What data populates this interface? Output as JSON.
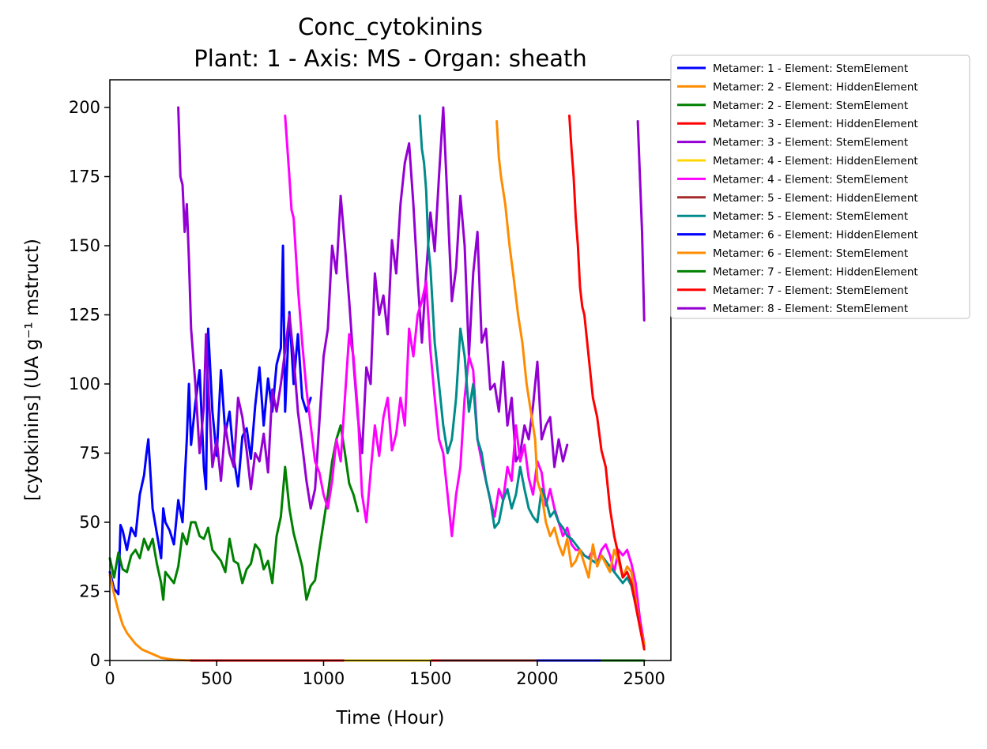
{
  "chart_data": {
    "type": "line",
    "title": "Conc_cytokinins",
    "subtitle": "Plant: 1 - Axis: MS - Organ: sheath",
    "xlabel": "Time (Hour)",
    "ylabel": "[cytokinins] (UA g⁻¹ mstruct)",
    "xlim": [
      0,
      2625
    ],
    "ylim": [
      0,
      210
    ],
    "xticks": [
      0,
      500,
      1000,
      1500,
      2000,
      2500
    ],
    "yticks": [
      0,
      25,
      50,
      75,
      100,
      125,
      150,
      175,
      200
    ],
    "grid": false,
    "legend_position": "outside-top-right",
    "series": [
      {
        "name": "Metamer: 1 - Element: StemElement",
        "color": "#0000ff",
        "x": [
          0,
          20,
          40,
          50,
          60,
          80,
          100,
          120,
          140,
          160,
          170,
          180,
          200,
          220,
          240,
          250,
          260,
          280,
          300,
          320,
          340,
          360,
          370,
          380,
          400,
          420,
          440,
          450,
          460,
          480,
          500,
          520,
          540,
          560,
          580,
          600,
          620,
          640,
          660,
          680,
          700,
          720,
          740,
          760,
          780,
          800,
          810,
          820,
          840,
          860,
          880,
          900,
          920,
          940
        ],
        "y": [
          32,
          26,
          24,
          49,
          47,
          40,
          48,
          45,
          60,
          67,
          74,
          80,
          55,
          46,
          37,
          55,
          50,
          47,
          42,
          58,
          50,
          80,
          100,
          78,
          93,
          105,
          70,
          62,
          120,
          90,
          74,
          105,
          82,
          90,
          73,
          63,
          81,
          84,
          73,
          92,
          106,
          85,
          102,
          90,
          107,
          113,
          150,
          90,
          126,
          100,
          118,
          95,
          90,
          95
        ]
      },
      {
        "name": "Metamer: 2 - Element: HiddenElement",
        "color": "#ff8c00",
        "x": [
          0,
          20,
          40,
          60,
          80,
          100,
          120,
          150,
          180,
          210,
          240,
          270,
          300,
          350,
          400,
          500,
          900
        ],
        "y": [
          31,
          24,
          18,
          13,
          10,
          8,
          6,
          4,
          3,
          2,
          1,
          0.6,
          0.3,
          0.1,
          0,
          0,
          0
        ]
      },
      {
        "name": "Metamer: 2 - Element: StemElement",
        "color": "#008000",
        "x": [
          0,
          20,
          40,
          60,
          80,
          100,
          120,
          140,
          160,
          180,
          200,
          220,
          240,
          250,
          260,
          280,
          300,
          320,
          340,
          360,
          380,
          400,
          420,
          440,
          460,
          480,
          500,
          520,
          540,
          560,
          580,
          600,
          620,
          640,
          660,
          680,
          700,
          720,
          740,
          760,
          780,
          800,
          820,
          840,
          860,
          880,
          900,
          920,
          940,
          960,
          980,
          1000,
          1020,
          1040,
          1060,
          1080,
          1100,
          1120,
          1140,
          1160
        ],
        "y": [
          37,
          30,
          39,
          33,
          32,
          38,
          40,
          37,
          44,
          40,
          44,
          35,
          28,
          22,
          32,
          30,
          28,
          34,
          46,
          42,
          50,
          50,
          45,
          44,
          48,
          40,
          38,
          36,
          32,
          44,
          36,
          35,
          28,
          33,
          35,
          42,
          40,
          33,
          36,
          28,
          45,
          52,
          70,
          55,
          46,
          40,
          34,
          22,
          27,
          29,
          40,
          50,
          60,
          72,
          80,
          85,
          75,
          64,
          60,
          54
        ]
      },
      {
        "name": "Metamer: 3 - Element: HiddenElement",
        "color": "#ff0000",
        "x": [
          380,
          600,
          800,
          1000,
          1200,
          1400,
          1550
        ],
        "y": [
          0,
          0,
          0,
          0,
          0,
          0,
          0
        ]
      },
      {
        "name": "Metamer: 3 - Element: StemElement",
        "color": "#9400d3",
        "x": [
          320,
          330,
          340,
          350,
          360,
          370,
          380,
          400,
          420,
          440,
          450,
          460,
          480,
          500,
          520,
          540,
          560,
          580,
          600,
          620,
          640,
          660,
          680,
          700,
          720,
          740,
          760,
          780,
          800,
          820,
          840,
          860,
          880,
          900,
          920,
          940,
          960,
          980,
          1000,
          1020,
          1040,
          1060,
          1080,
          1100,
          1120,
          1140,
          1160,
          1180,
          1200,
          1220,
          1240,
          1260,
          1280,
          1300,
          1320,
          1340,
          1360,
          1380,
          1400,
          1420,
          1440,
          1460,
          1480,
          1500,
          1520,
          1540,
          1560,
          1580,
          1600,
          1620,
          1640,
          1660,
          1680,
          1700,
          1720,
          1740,
          1760,
          1780,
          1800,
          1820,
          1840,
          1860,
          1880,
          1900,
          1920,
          1940,
          1960,
          1980,
          2000,
          2020,
          2040,
          2060,
          2080,
          2100,
          2120,
          2140
        ],
        "y": [
          200,
          175,
          172,
          155,
          165,
          145,
          120,
          100,
          75,
          92,
          118,
          100,
          70,
          80,
          65,
          85,
          75,
          70,
          95,
          88,
          76,
          62,
          75,
          72,
          82,
          68,
          98,
          90,
          100,
          112,
          125,
          110,
          90,
          78,
          65,
          55,
          62,
          86,
          110,
          120,
          150,
          140,
          168,
          150,
          130,
          108,
          88,
          75,
          106,
          100,
          140,
          125,
          132,
          118,
          152,
          140,
          165,
          180,
          187,
          165,
          138,
          115,
          140,
          162,
          148,
          175,
          200,
          165,
          130,
          142,
          168,
          150,
          110,
          140,
          155,
          115,
          120,
          98,
          100,
          90,
          108,
          85,
          95,
          72,
          75,
          85,
          80,
          92,
          108,
          80,
          85,
          88,
          70,
          80,
          72,
          78
        ]
      },
      {
        "name": "Metamer: 4 - Element: HiddenElement",
        "color": "#ffd700",
        "x": [
          1100,
          1300,
          1500
        ],
        "y": [
          0,
          0,
          0
        ]
      },
      {
        "name": "Metamer: 4 - Element: StemElement",
        "color": "#ff00ff",
        "x": [
          820,
          840,
          850,
          860,
          880,
          900,
          920,
          940,
          960,
          980,
          1000,
          1020,
          1040,
          1060,
          1080,
          1100,
          1120,
          1140,
          1160,
          1180,
          1200,
          1220,
          1240,
          1260,
          1280,
          1300,
          1320,
          1340,
          1360,
          1380,
          1400,
          1420,
          1440,
          1460,
          1480,
          1500,
          1520,
          1540,
          1560,
          1580,
          1600,
          1620,
          1640,
          1660,
          1680,
          1700,
          1720,
          1740,
          1760,
          1780,
          1800,
          1820,
          1840,
          1860,
          1880,
          1900,
          1920,
          1940,
          1960,
          1980,
          2000,
          2020,
          2040,
          2060,
          2080,
          2100,
          2120,
          2140,
          2160,
          2180,
          2200,
          2220,
          2240,
          2260,
          2280,
          2300,
          2320,
          2340,
          2360,
          2380,
          2400,
          2420,
          2440,
          2460,
          2480,
          2500
        ],
        "y": [
          197,
          175,
          163,
          160,
          135,
          115,
          98,
          85,
          72,
          68,
          60,
          55,
          65,
          80,
          72,
          95,
          118,
          110,
          90,
          60,
          50,
          68,
          85,
          74,
          88,
          95,
          76,
          82,
          95,
          85,
          120,
          110,
          125,
          130,
          137,
          112,
          95,
          80,
          75,
          60,
          45,
          60,
          70,
          95,
          110,
          105,
          80,
          72,
          65,
          58,
          52,
          62,
          58,
          70,
          65,
          85,
          72,
          78,
          66,
          60,
          72,
          68,
          56,
          62,
          55,
          50,
          45,
          48,
          42,
          40,
          40,
          38,
          37,
          40,
          35,
          40,
          42,
          38,
          32,
          40,
          38,
          40,
          35,
          28,
          15,
          6
        ]
      },
      {
        "name": "Metamer: 5 - Element: HiddenElement",
        "color": "#a52a2a",
        "x": [
          1550,
          1800,
          2000
        ],
        "y": [
          0,
          0,
          0
        ]
      },
      {
        "name": "Metamer: 5 - Element: StemElement",
        "color": "#008b8b",
        "x": [
          1450,
          1460,
          1470,
          1480,
          1490,
          1500,
          1520,
          1540,
          1560,
          1580,
          1600,
          1620,
          1640,
          1660,
          1680,
          1700,
          1720,
          1740,
          1760,
          1780,
          1800,
          1820,
          1840,
          1860,
          1880,
          1900,
          1920,
          1940,
          1960,
          1980,
          2000,
          2020,
          2040,
          2060,
          2080,
          2100,
          2120,
          2140,
          2160,
          2180,
          2200,
          2220,
          2240,
          2260,
          2280,
          2300,
          2320,
          2340,
          2360,
          2380,
          2400,
          2420,
          2440,
          2460,
          2480,
          2500
        ],
        "y": [
          197,
          185,
          180,
          170,
          150,
          142,
          115,
          100,
          85,
          75,
          80,
          95,
          120,
          110,
          90,
          100,
          80,
          75,
          65,
          58,
          48,
          50,
          58,
          62,
          55,
          60,
          70,
          62,
          55,
          52,
          50,
          62,
          58,
          52,
          54,
          50,
          48,
          45,
          44,
          42,
          40,
          38,
          37,
          36,
          35,
          38,
          36,
          34,
          32,
          30,
          28,
          30,
          27,
          20,
          12,
          5
        ]
      },
      {
        "name": "Metamer: 6 - Element: HiddenElement",
        "color": "#0000ff",
        "x": [
          2000,
          2150,
          2300
        ],
        "y": [
          0,
          0,
          0
        ]
      },
      {
        "name": "Metamer: 6 - Element: StemElement",
        "color": "#ff8c00",
        "x": [
          1810,
          1820,
          1830,
          1840,
          1850,
          1870,
          1890,
          1910,
          1930,
          1950,
          1970,
          1990,
          2000,
          2020,
          2040,
          2060,
          2080,
          2100,
          2120,
          2140,
          2160,
          2180,
          2200,
          2220,
          2240,
          2260,
          2280,
          2300,
          2320,
          2340,
          2360,
          2380,
          2400,
          2420,
          2440,
          2460,
          2480,
          2500
        ],
        "y": [
          195,
          182,
          175,
          170,
          165,
          150,
          138,
          125,
          115,
          100,
          90,
          80,
          65,
          60,
          50,
          45,
          48,
          42,
          38,
          44,
          34,
          36,
          40,
          35,
          30,
          42,
          34,
          38,
          35,
          32,
          40,
          36,
          30,
          34,
          32,
          22,
          12,
          6
        ]
      },
      {
        "name": "Metamer: 7 - Element: HiddenElement",
        "color": "#008000",
        "x": [
          2300,
          2500
        ],
        "y": [
          0,
          0
        ]
      },
      {
        "name": "Metamer: 7 - Element: StemElement",
        "color": "#ff0000",
        "x": [
          2150,
          2160,
          2170,
          2180,
          2190,
          2200,
          2210,
          2220,
          2240,
          2260,
          2280,
          2300,
          2320,
          2340,
          2360,
          2380,
          2400,
          2420,
          2440,
          2460,
          2480,
          2500
        ],
        "y": [
          197,
          185,
          175,
          160,
          150,
          135,
          128,
          125,
          110,
          95,
          88,
          76,
          70,
          55,
          45,
          38,
          30,
          32,
          28,
          20,
          12,
          4
        ]
      },
      {
        "name": "Metamer: 8 - Element: StemElement",
        "color": "#9400d3",
        "x": [
          2470,
          2480,
          2490,
          2500
        ],
        "y": [
          195,
          175,
          155,
          123
        ]
      }
    ]
  }
}
